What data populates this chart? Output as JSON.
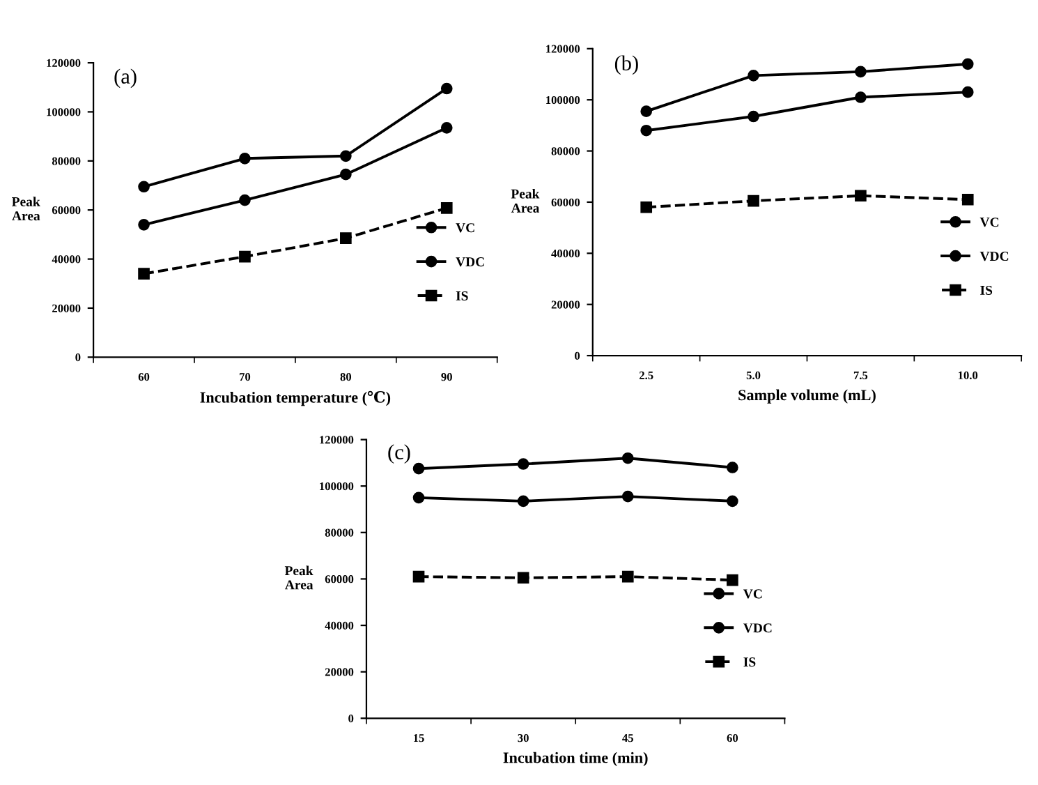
{
  "chart_data": [
    {
      "type": "line",
      "annotations": [
        "(a)"
      ],
      "xlabel": "Incubation temperature (℃)",
      "ylabel": "Peak\nArea",
      "categories": [
        "60",
        "70",
        "80",
        "90"
      ],
      "ylim": [
        0,
        120000
      ],
      "yticks": [
        0,
        20000,
        40000,
        60000,
        80000,
        100000,
        120000
      ],
      "grid": false,
      "legend": "right",
      "series": [
        {
          "name": "VC",
          "color": "#000000",
          "marker": "circle",
          "line_style": "solid",
          "values": [
            69500,
            81000,
            82000,
            109500
          ]
        },
        {
          "name": "VDC",
          "color": "#000000",
          "marker": "circle",
          "line_style": "solid",
          "values": [
            54000,
            64000,
            74500,
            93500
          ]
        },
        {
          "name": "IS",
          "color": "#000000",
          "marker": "square",
          "line_style": "dashed",
          "values": [
            34000,
            41000,
            48500,
            60800
          ]
        }
      ]
    },
    {
      "type": "line",
      "annotations": [
        "(b)"
      ],
      "xlabel": "Sample volume (mL)",
      "ylabel": "Peak\nArea",
      "categories": [
        "2.5",
        "5.0",
        "7.5",
        "10.0"
      ],
      "ylim": [
        0,
        120000
      ],
      "yticks": [
        0,
        20000,
        40000,
        60000,
        80000,
        100000,
        120000
      ],
      "grid": false,
      "legend": "right",
      "series": [
        {
          "name": "VC",
          "color": "#000000",
          "marker": "circle",
          "line_style": "solid",
          "values": [
            95500,
            109500,
            111000,
            114000
          ]
        },
        {
          "name": "VDC",
          "color": "#000000",
          "marker": "circle",
          "line_style": "solid",
          "values": [
            88000,
            93500,
            101000,
            103000
          ]
        },
        {
          "name": "IS",
          "color": "#000000",
          "marker": "square",
          "line_style": "dashed",
          "values": [
            58000,
            60500,
            62500,
            61000
          ]
        }
      ]
    },
    {
      "type": "line",
      "annotations": [
        "(c)"
      ],
      "xlabel": "Incubation time (min)",
      "ylabel": "Peak\nArea",
      "categories": [
        "15",
        "30",
        "45",
        "60"
      ],
      "ylim": [
        0,
        120000
      ],
      "yticks": [
        0,
        20000,
        40000,
        60000,
        80000,
        100000,
        120000
      ],
      "grid": false,
      "legend": "right",
      "series": [
        {
          "name": "VC",
          "color": "#000000",
          "marker": "circle",
          "line_style": "solid",
          "values": [
            107500,
            109500,
            112000,
            108000
          ]
        },
        {
          "name": "VDC",
          "color": "#000000",
          "marker": "circle",
          "line_style": "solid",
          "values": [
            95000,
            93500,
            95500,
            93500
          ]
        },
        {
          "name": "IS",
          "color": "#000000",
          "marker": "square",
          "line_style": "dashed",
          "values": [
            61000,
            60500,
            61000,
            59500
          ]
        }
      ]
    }
  ]
}
